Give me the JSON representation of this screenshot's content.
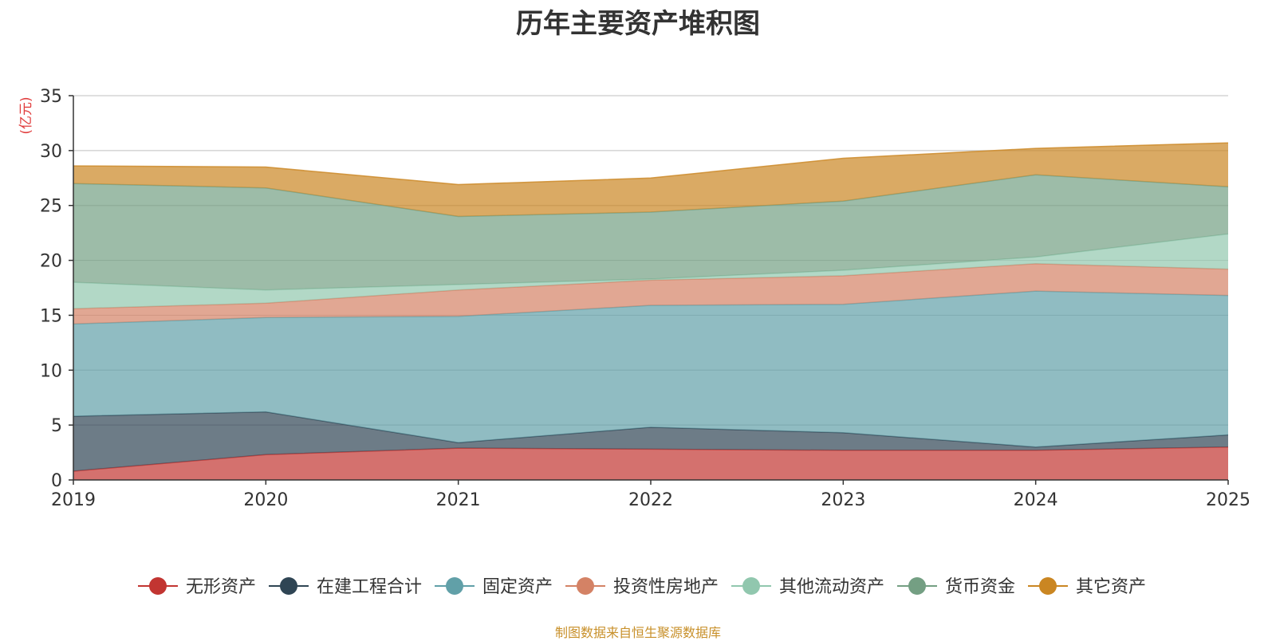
{
  "chart_data": {
    "type": "area",
    "stacked": true,
    "title": "历年主要资产堆积图",
    "ylabel": "(亿元)",
    "xlabel": "",
    "x": [
      "2019",
      "2020",
      "2021",
      "2022",
      "2023",
      "2024",
      "2025"
    ],
    "ylim": [
      0,
      35
    ],
    "yticks": [
      "0",
      "5",
      "10",
      "15",
      "20",
      "25",
      "30",
      "35"
    ],
    "series": [
      {
        "name": "无形资产",
        "color": "#c23531",
        "values": [
          0.8,
          2.3,
          2.9,
          2.8,
          2.7,
          2.7,
          3.0
        ]
      },
      {
        "name": "在建工程合计",
        "color": "#2f4554",
        "values": [
          5.0,
          3.9,
          0.5,
          2.0,
          1.6,
          0.3,
          1.1
        ]
      },
      {
        "name": "固定资产",
        "color": "#61a0a8",
        "values": [
          8.4,
          8.6,
          11.5,
          11.1,
          11.7,
          14.2,
          12.7
        ]
      },
      {
        "name": "投资性房地产",
        "color": "#d48265",
        "values": [
          1.4,
          1.3,
          2.4,
          2.3,
          2.6,
          2.5,
          2.4
        ]
      },
      {
        "name": "其他流动资产",
        "color": "#91c7ae",
        "values": [
          2.4,
          1.2,
          0.5,
          0.1,
          0.5,
          0.6,
          3.2
        ]
      },
      {
        "name": "货币资金",
        "color": "#749f83",
        "values": [
          9.0,
          9.3,
          6.2,
          6.1,
          6.3,
          7.5,
          4.3
        ]
      },
      {
        "name": "其它资产",
        "color": "#ca8622",
        "values": [
          1.6,
          1.9,
          2.9,
          3.1,
          3.9,
          2.4,
          4.0
        ]
      }
    ]
  },
  "source_note": "制图数据来自恒生聚源数据库"
}
